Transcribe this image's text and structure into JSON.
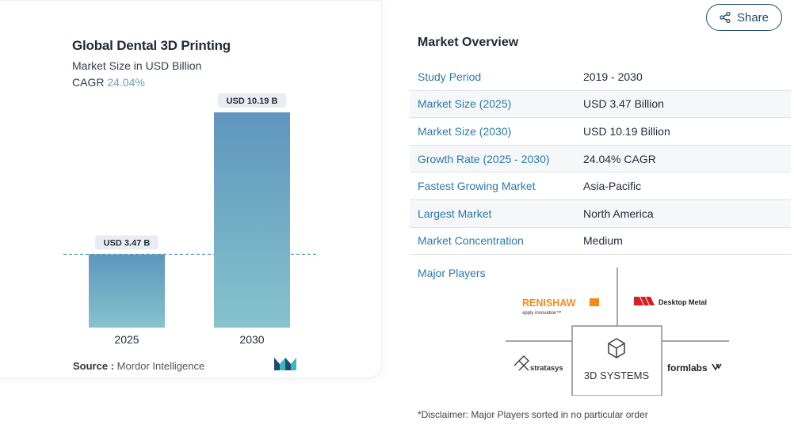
{
  "share": {
    "label": "Share"
  },
  "chart": {
    "title": "Global Dental 3D Printing",
    "subtitle": "Market Size in USD Billion",
    "cagr_label": "CAGR",
    "cagr_value": "24.04%",
    "source_label": "Source :",
    "source_value": "Mordor Intelligence"
  },
  "chart_data": {
    "type": "bar",
    "categories": [
      "2025",
      "2030"
    ],
    "values": [
      3.47,
      10.19
    ],
    "data_labels": [
      "USD 3.47 B",
      "USD 10.19 B"
    ],
    "title": "Global Dental 3D Printing",
    "subtitle": "Market Size in USD Billion",
    "xlabel": "",
    "ylabel": "",
    "ylim": [
      0,
      10.19
    ],
    "grid": false,
    "reference_line_value": 3.47
  },
  "overview": {
    "title": "Market Overview",
    "rows": [
      {
        "key": "Study Period",
        "value": "2019 - 2030"
      },
      {
        "key": "Market Size (2025)",
        "value": "USD 3.47 Billion"
      },
      {
        "key": "Market Size (2030)",
        "value": "USD 10.19 Billion"
      },
      {
        "key": "Growth Rate (2025 - 2030)",
        "value": "24.04% CAGR"
      },
      {
        "key": "Fastest Growing Market",
        "value": "Asia-Pacific"
      },
      {
        "key": "Largest Market",
        "value": "North America"
      },
      {
        "key": "Market Concentration",
        "value": "Medium"
      }
    ]
  },
  "players": {
    "title": "Major Players",
    "renishaw": "RENISHAW",
    "renishaw_tag": "apply innovation™",
    "desktop_metal": "Desktop Metal",
    "stratasys": "stratasys",
    "systems3d": "3D SYSTEMS",
    "formlabs": "formlabs"
  },
  "disclaimer": "*Disclaimer: Major Players sorted in no particular order",
  "colors": {
    "bar_top": "#5f95bd",
    "bar_bottom": "#86c3cc",
    "link_blue": "#2b78b0",
    "renishaw_orange": "#f08b1c",
    "desktop_metal_red": "#d32027",
    "brand_teal": "#3bb7c4",
    "brand_navy": "#1f4a6b"
  }
}
